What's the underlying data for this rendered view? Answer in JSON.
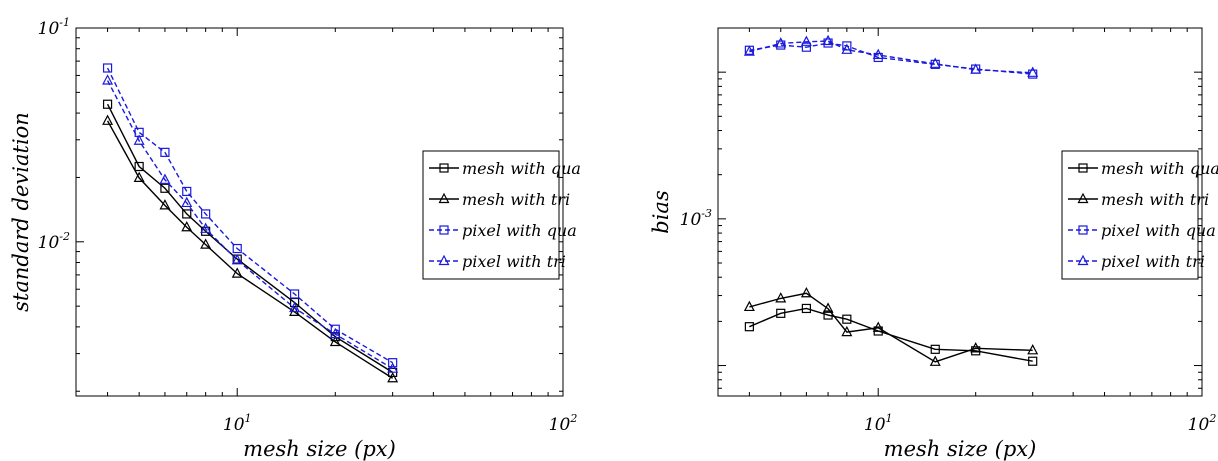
{
  "chart_data": [
    {
      "type": "line",
      "xscale": "log",
      "yscale": "log",
      "xlabel": "mesh size (px)",
      "ylabel": "standard deviation",
      "title": "",
      "xlim": [
        3.2,
        100
      ],
      "ylim": [
        0.0019,
        0.1
      ],
      "x_tick_labels": [
        {
          "value": 10,
          "base": "10",
          "exp": "1"
        },
        {
          "value": 100,
          "base": "10",
          "exp": "2"
        }
      ],
      "y_tick_labels": [
        {
          "value": 0.1,
          "base": "10",
          "exp": "-1"
        },
        {
          "value": 0.01,
          "base": "10",
          "exp": "-2"
        }
      ],
      "legend_position": "right",
      "x": [
        4,
        5,
        6,
        7,
        8,
        10,
        15,
        20,
        30
      ],
      "series": [
        {
          "name": "mesh with qua",
          "color": "#000000",
          "dash": "solid",
          "marker": "square",
          "values": [
            0.044,
            0.0225,
            0.0178,
            0.0135,
            0.0112,
            0.0083,
            0.0052,
            0.0036,
            0.00245
          ]
        },
        {
          "name": "mesh with tri",
          "color": "#000000",
          "dash": "solid",
          "marker": "triangle",
          "values": [
            0.0368,
            0.0199,
            0.0148,
            0.0117,
            0.0097,
            0.0071,
            0.0047,
            0.0034,
            0.0023
          ]
        },
        {
          "name": "pixel with qua",
          "color": "#1a1adc",
          "dash": "dashed",
          "marker": "square",
          "values": [
            0.065,
            0.0325,
            0.0262,
            0.0172,
            0.0135,
            0.0093,
            0.0057,
            0.0039,
            0.00272
          ]
        },
        {
          "name": "pixel with tri",
          "color": "#1a1adc",
          "dash": "dashed",
          "marker": "triangle",
          "values": [
            0.0568,
            0.0297,
            0.0195,
            0.0152,
            0.0115,
            0.0082,
            0.0049,
            0.0037,
            0.00255
          ]
        }
      ]
    },
    {
      "type": "line",
      "xscale": "log",
      "yscale": "log",
      "xlabel": "mesh size (px)",
      "ylabel": "bias",
      "title": "",
      "xlim": [
        3.2,
        100
      ],
      "ylim": [
        6.2e-05,
        0.02
      ],
      "x_tick_labels": [
        {
          "value": 10,
          "base": "10",
          "exp": "1"
        },
        {
          "value": 100,
          "base": "10",
          "exp": "2"
        }
      ],
      "y_tick_labels": [
        {
          "value": 0.001,
          "base": "10",
          "exp": "-3"
        }
      ],
      "legend_position": "right",
      "x": [
        4,
        5,
        6,
        7,
        8,
        10,
        15,
        20,
        30
      ],
      "series": [
        {
          "name": "mesh with qua",
          "color": "#000000",
          "dash": "solid",
          "marker": "square",
          "values": [
            0.000184,
            0.000227,
            0.000245,
            0.000221,
            0.000207,
            0.000172,
            0.000129,
            0.000126,
            0.000107
          ]
        },
        {
          "name": "mesh with tri",
          "color": "#000000",
          "dash": "solid",
          "marker": "triangle",
          "values": [
            0.000251,
            0.000287,
            0.000311,
            0.000244,
            0.000169,
            0.000181,
            0.000106,
            0.000131,
            0.000127
          ]
        },
        {
          "name": "pixel with qua",
          "color": "#1a1adc",
          "dash": "dashed",
          "marker": "square",
          "values": [
            0.0141,
            0.0153,
            0.0148,
            0.0158,
            0.0151,
            0.0126,
            0.0113,
            0.0105,
            0.0097
          ]
        },
        {
          "name": "pixel with tri",
          "color": "#1a1adc",
          "dash": "dashed",
          "marker": "triangle",
          "values": [
            0.0138,
            0.0157,
            0.0161,
            0.0163,
            0.0142,
            0.0131,
            0.0114,
            0.0104,
            0.0099
          ]
        }
      ]
    }
  ]
}
